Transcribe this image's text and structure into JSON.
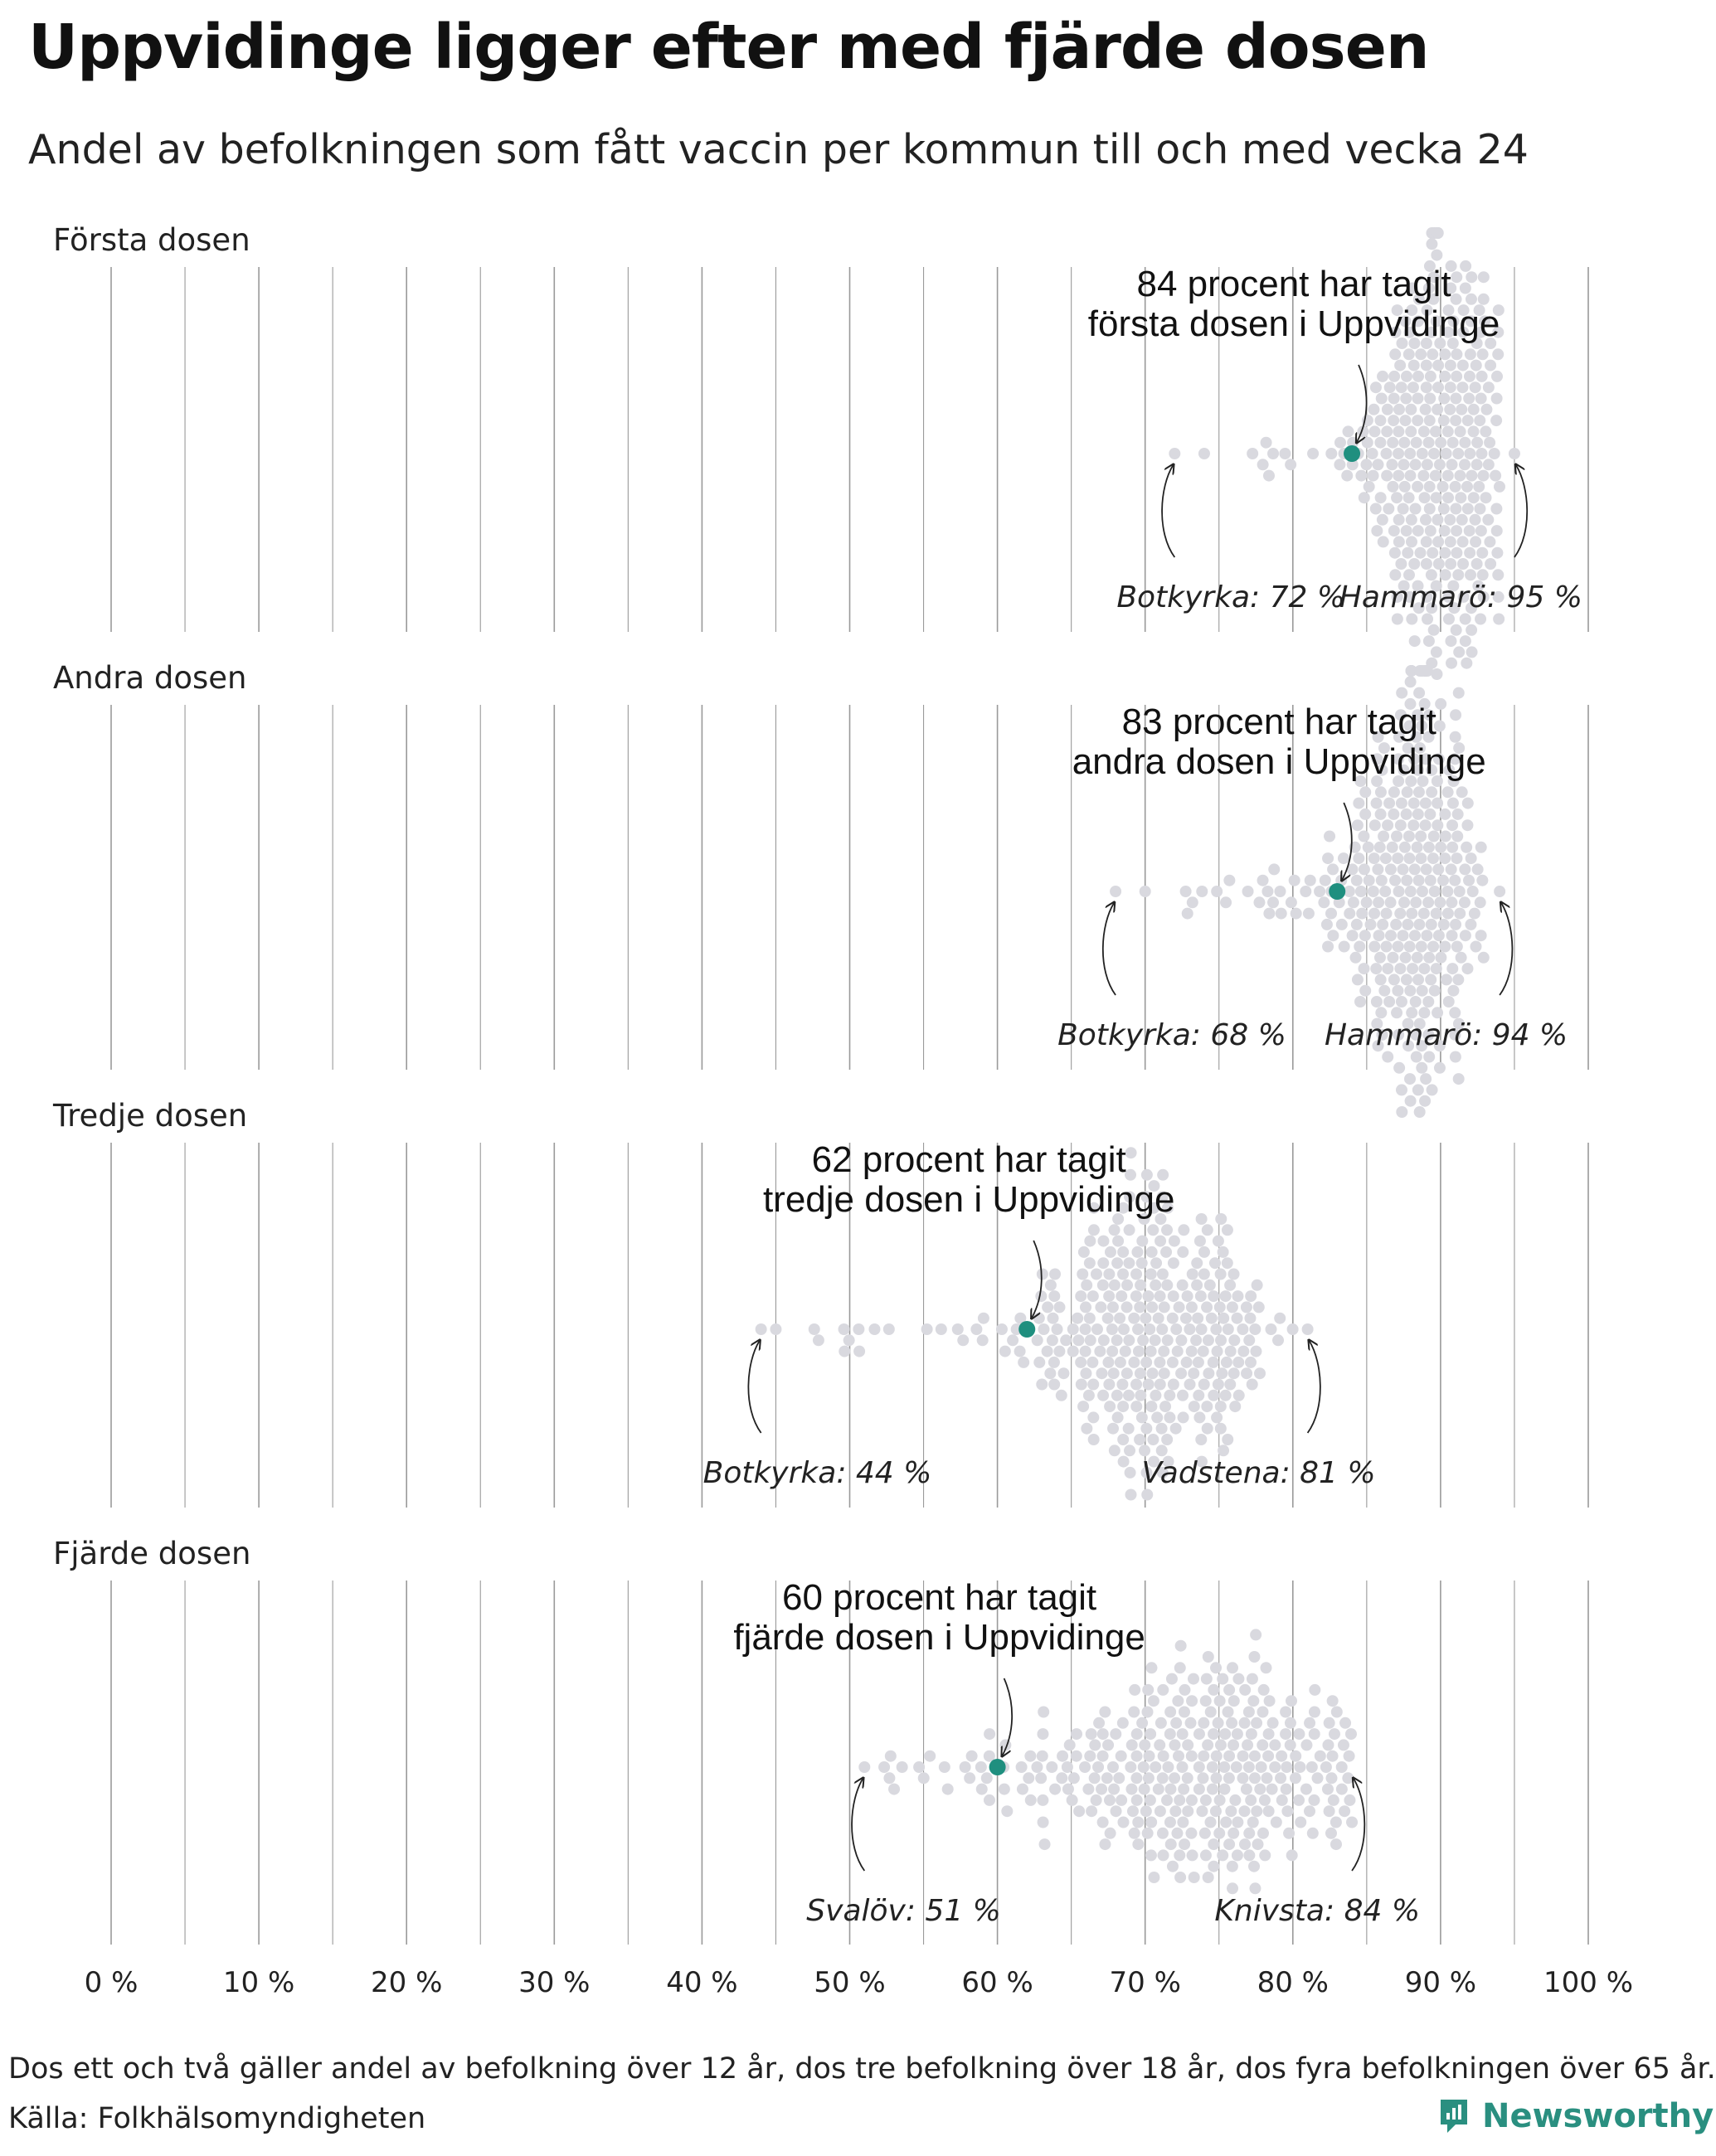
{
  "title": "Uppvidinge ligger efter med fjärde dosen",
  "subtitle": "Andel av befolkningen som fått vaccin per kommun till och med vecka 24",
  "footnote": "Dos ett och två gäller andel av befolkning över 12 år, dos tre befolkning över 18 år, dos fyra befolkningen över 65 år.",
  "source": "Källa: Folkhälsomyndigheten",
  "brand": {
    "name": "Newsworthy",
    "icon": "newsworthy-logo-icon"
  },
  "colors": {
    "highlight": "#1f8f7f",
    "dot": "#d9d9df",
    "grid": "#9a9a9a",
    "brand": "#2a8f80"
  },
  "chart_data": {
    "type": "scatter",
    "subtype": "beeswarm",
    "title": "Uppvidinge ligger efter med fjärde dosen",
    "subtitle": "Andel av befolkningen som fått vaccin per kommun till och med vecka 24",
    "x_ticks": [
      "0 %",
      "10 %",
      "20 %",
      "30 %",
      "40 %",
      "50 %",
      "60 %",
      "70 %",
      "80 %",
      "90 %",
      "100 %"
    ],
    "xlim": [
      0,
      100
    ],
    "grid": true,
    "panels": [
      {
        "label": "Första dosen",
        "highlight": {
          "name": "Uppvidinge",
          "value": 84,
          "label_line1": "84 procent har tagit",
          "label_line2": "första dosen i Uppvidinge"
        },
        "min": {
          "name": "Botkyrka",
          "value": 72,
          "label": "Botkyrka: 72 %"
        },
        "max": {
          "name": "Hammarö",
          "value": 95,
          "label": "Hammarö: 95 %"
        },
        "distribution": {
          "low_tail": [
            72,
            74
          ],
          "bulk_range": [
            76,
            94
          ],
          "peak": 90,
          "spread": 2.6,
          "count": 290
        }
      },
      {
        "label": "Andra dosen",
        "highlight": {
          "name": "Uppvidinge",
          "value": 83,
          "label_line1": "83 procent har tagit",
          "label_line2": "andra dosen i Uppvidinge"
        },
        "min": {
          "name": "Botkyrka",
          "value": 68,
          "label": "Botkyrka: 68 %"
        },
        "max": {
          "name": "Hammarö",
          "value": 94,
          "label": "Hammarö: 94 %"
        },
        "distribution": {
          "low_tail": [
            68,
            70
          ],
          "bulk_range": [
            75,
            93
          ],
          "peak": 88.5,
          "spread": 2.9,
          "count": 290
        }
      },
      {
        "label": "Tredje dosen",
        "highlight": {
          "name": "Uppvidinge",
          "value": 62,
          "label_line1": "62 procent har tagit",
          "label_line2": "tredje dosen i Uppvidinge"
        },
        "min": {
          "name": "Botkyrka",
          "value": 44,
          "label": "Botkyrka: 44 %"
        },
        "max": {
          "name": "Vadstena",
          "value": 81,
          "label": "Vadstena: 81 %"
        },
        "distribution": {
          "low_tail": [
            44,
            45
          ],
          "bulk_range": [
            51,
            80
          ],
          "peak": 70.5,
          "spread": 4.5,
          "count": 290
        }
      },
      {
        "label": "Fjärde dosen",
        "highlight": {
          "name": "Uppvidinge",
          "value": 60,
          "label_line1": "60 procent har tagit",
          "label_line2": "fjärde dosen i Uppvidinge"
        },
        "min": {
          "name": "Svalöv",
          "value": 51,
          "label": "Svalöv: 51 %"
        },
        "max": {
          "name": "Knivsta",
          "value": 84,
          "label": "Knivsta: 84 %"
        },
        "distribution": {
          "low_tail": [],
          "bulk_range": [
            51,
            84
          ],
          "peak": 74,
          "spread": 6.5,
          "count": 290
        }
      }
    ]
  }
}
